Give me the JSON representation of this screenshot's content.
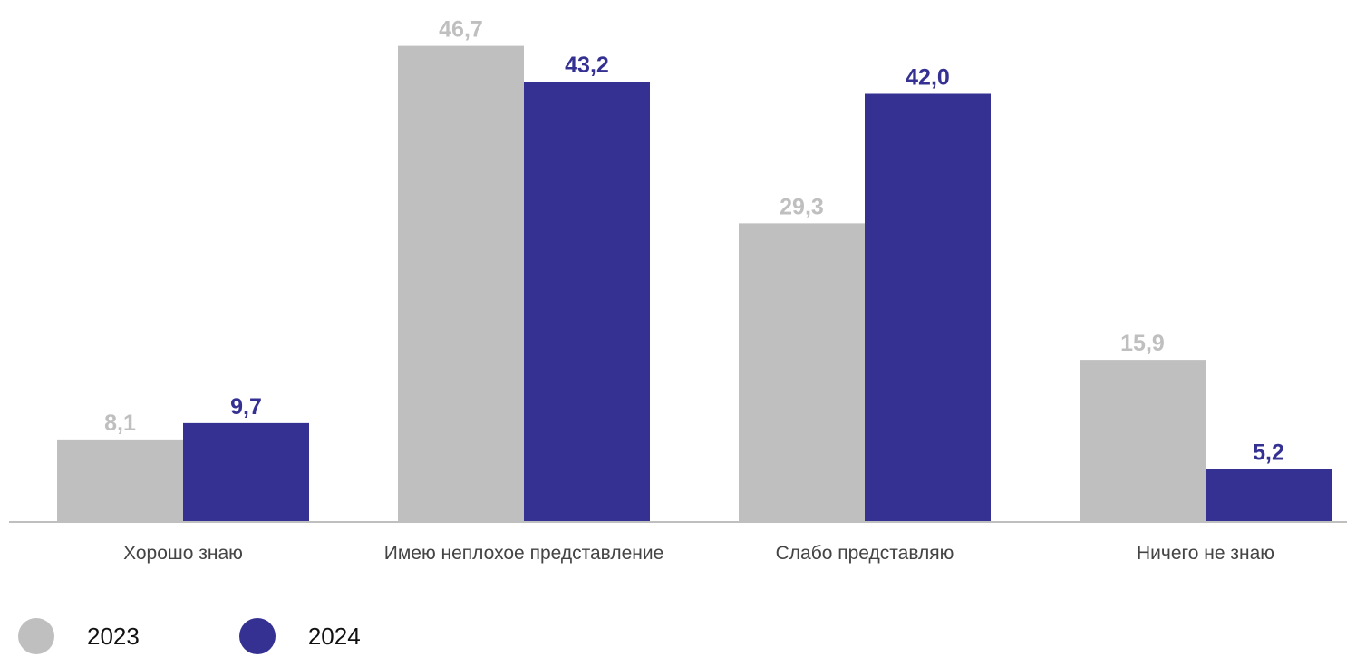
{
  "chart_data": {
    "type": "bar",
    "categories": [
      "Хорошо знаю",
      "Имею неплохое представление",
      "Слабо представляю",
      "Ничего не знаю"
    ],
    "series": [
      {
        "name": "2023",
        "values": [
          8.1,
          46.7,
          29.3,
          15.9
        ],
        "labels": [
          "8,1",
          "46,7",
          "29,3",
          "15,9"
        ],
        "color": "#bfbfbf"
      },
      {
        "name": "2024",
        "values": [
          9.7,
          43.2,
          42.0,
          5.2
        ],
        "labels": [
          "9,7",
          "43,2",
          "42,0",
          "5,2"
        ],
        "color": "#353193"
      }
    ],
    "title": "",
    "xlabel": "",
    "ylabel": "",
    "ylim": [
      0,
      50
    ],
    "grid": false,
    "legend_position": "bottom-left",
    "axis_color": "#bfbfbf"
  }
}
